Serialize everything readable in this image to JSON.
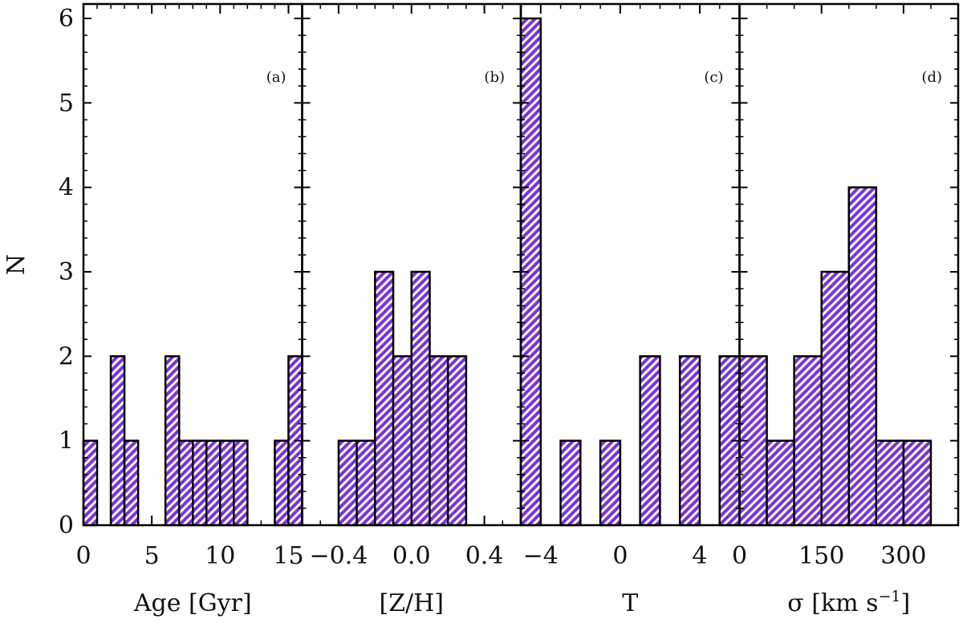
{
  "chart_data": {
    "type": "bar",
    "ylabel": "N",
    "ylim": [
      0,
      6
    ],
    "yticks": [
      "0",
      "1",
      "2",
      "3",
      "4",
      "5",
      "6"
    ],
    "bar_fill": "#7a33d6",
    "bar_stripe": "#ffffff",
    "panels": [
      {
        "tag": "(a)",
        "xlabel": "Age [Gyr]",
        "xlim": [
          0,
          16
        ],
        "xticks": [
          {
            "v": 0,
            "label": "0"
          },
          {
            "v": 5,
            "label": "5"
          },
          {
            "v": 10,
            "label": "10"
          },
          {
            "v": 15,
            "label": "15"
          }
        ],
        "minor_step": 1,
        "bars": [
          {
            "x0": 0,
            "x1": 1,
            "y": 1
          },
          {
            "x0": 2,
            "x1": 3,
            "y": 2
          },
          {
            "x0": 3,
            "x1": 4,
            "y": 1
          },
          {
            "x0": 6,
            "x1": 7,
            "y": 2
          },
          {
            "x0": 7,
            "x1": 8,
            "y": 1
          },
          {
            "x0": 8,
            "x1": 9,
            "y": 1
          },
          {
            "x0": 9,
            "x1": 10,
            "y": 1
          },
          {
            "x0": 10,
            "x1": 11,
            "y": 1
          },
          {
            "x0": 11,
            "x1": 12,
            "y": 1
          },
          {
            "x0": 14,
            "x1": 15,
            "y": 1
          },
          {
            "x0": 15,
            "x1": 16,
            "y": 2
          }
        ]
      },
      {
        "tag": "(b)",
        "xlabel": "[Z/H]",
        "xlim": [
          -0.6,
          0.6
        ],
        "xticks": [
          {
            "v": -0.4,
            "label": "−0.4"
          },
          {
            "v": 0.0,
            "label": "0.0"
          },
          {
            "v": 0.4,
            "label": "0.4"
          }
        ],
        "minor_step": 0.1,
        "bars": [
          {
            "x0": -0.4,
            "x1": -0.3,
            "y": 1
          },
          {
            "x0": -0.3,
            "x1": -0.2,
            "y": 1
          },
          {
            "x0": -0.2,
            "x1": -0.1,
            "y": 3
          },
          {
            "x0": -0.1,
            "x1": 0.0,
            "y": 2
          },
          {
            "x0": 0.0,
            "x1": 0.1,
            "y": 3
          },
          {
            "x0": 0.1,
            "x1": 0.2,
            "y": 2
          },
          {
            "x0": 0.2,
            "x1": 0.3,
            "y": 2
          }
        ]
      },
      {
        "tag": "(c)",
        "xlabel": "T",
        "xlim": [
          -5,
          6
        ],
        "xticks": [
          {
            "v": -4,
            "label": "−4"
          },
          {
            "v": 0,
            "label": "0"
          },
          {
            "v": 4,
            "label": "4"
          }
        ],
        "minor_step": 1,
        "bars": [
          {
            "x0": -5,
            "x1": -4,
            "y": 6
          },
          {
            "x0": -3,
            "x1": -2,
            "y": 1
          },
          {
            "x0": -1,
            "x1": 0,
            "y": 1
          },
          {
            "x0": 1,
            "x1": 2,
            "y": 2
          },
          {
            "x0": 3,
            "x1": 4,
            "y": 2
          },
          {
            "x0": 5,
            "x1": 6,
            "y": 2
          }
        ]
      },
      {
        "tag": "(d)",
        "xlabel": "σ [km s",
        "xlabel_sup": "−1",
        "xlabel_end": "]",
        "xlim": [
          0,
          400
        ],
        "xticks": [
          {
            "v": 0,
            "label": "0"
          },
          {
            "v": 150,
            "label": "150"
          },
          {
            "v": 300,
            "label": "300"
          }
        ],
        "minor_step": 50,
        "bars": [
          {
            "x0": 0,
            "x1": 50,
            "y": 2
          },
          {
            "x0": 50,
            "x1": 100,
            "y": 1
          },
          {
            "x0": 100,
            "x1": 150,
            "y": 2
          },
          {
            "x0": 150,
            "x1": 200,
            "y": 3
          },
          {
            "x0": 200,
            "x1": 250,
            "y": 4
          },
          {
            "x0": 250,
            "x1": 300,
            "y": 1
          },
          {
            "x0": 300,
            "x1": 350,
            "y": 1
          }
        ]
      }
    ]
  }
}
